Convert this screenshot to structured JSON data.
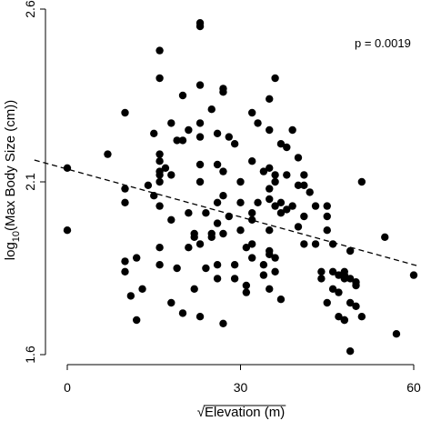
{
  "chart_data": {
    "type": "scatter",
    "title": "",
    "xlabel": "Elevation (m)",
    "xlabel_sqrt_symbol": "√",
    "ylabel_prefix": "log",
    "ylabel_subscript": "10",
    "ylabel_suffix": "(Max Body Size (cm))",
    "xlim": [
      0,
      60
    ],
    "ylim": [
      1.6,
      2.6
    ],
    "xticks": [
      0,
      30,
      60
    ],
    "xtick_labels": [
      "0",
      "30",
      "60"
    ],
    "yticks": [
      1.6,
      2.1,
      2.6
    ],
    "ytick_labels": [
      "1.6",
      "2.1",
      "2.6"
    ],
    "grid": false,
    "annotation": "p = 0.0019",
    "annotation_position": "top-right",
    "trendline": {
      "style": "dashed",
      "x": [
        -5,
        60
      ],
      "y": [
        2.16,
        1.86
      ]
    },
    "colors": {
      "points": "#000000",
      "axis": "#000000"
    },
    "series": [
      {
        "name": "",
        "points": [
          [
            0,
            2.14
          ],
          [
            0,
            1.96
          ],
          [
            7,
            2.18
          ],
          [
            10,
            2.3
          ],
          [
            10,
            2.08
          ],
          [
            10,
            2.04
          ],
          [
            10,
            1.87
          ],
          [
            10,
            1.84
          ],
          [
            11,
            1.77
          ],
          [
            12,
            1.88
          ],
          [
            12,
            1.7
          ],
          [
            13,
            1.79
          ],
          [
            14,
            2.09
          ],
          [
            15,
            2.24
          ],
          [
            16,
            1.86
          ],
          [
            15,
            2.06
          ],
          [
            16,
            2.48
          ],
          [
            16,
            2.4
          ],
          [
            16,
            2.18
          ],
          [
            16,
            2.16
          ],
          [
            16,
            2.13
          ],
          [
            16,
            2.12
          ],
          [
            16,
            2.1
          ],
          [
            16,
            2.03
          ],
          [
            16,
            1.91
          ],
          [
            17,
            2.14
          ],
          [
            18,
            2.27
          ],
          [
            18,
            2.12
          ],
          [
            18,
            1.99
          ],
          [
            18,
            1.75
          ],
          [
            19,
            2.22
          ],
          [
            19,
            1.85
          ],
          [
            20,
            2.35
          ],
          [
            20,
            2.22
          ],
          [
            20,
            1.72
          ],
          [
            21,
            2.25
          ],
          [
            21,
            2.01
          ],
          [
            21,
            1.91
          ],
          [
            22,
            1.79
          ],
          [
            22,
            1.94
          ],
          [
            22,
            1.95
          ],
          [
            23,
            2.56
          ],
          [
            23,
            2.55
          ],
          [
            23,
            2.38
          ],
          [
            23,
            2.27
          ],
          [
            23,
            2.23
          ],
          [
            23,
            2.15
          ],
          [
            23,
            2.1
          ],
          [
            23,
            1.71
          ],
          [
            23,
            1.92
          ],
          [
            24,
            2.01
          ],
          [
            24,
            1.85
          ],
          [
            25,
            2.31
          ],
          [
            25,
            1.95
          ],
          [
            25,
            1.94
          ],
          [
            26,
            2.24
          ],
          [
            26,
            2.15
          ],
          [
            26,
            2.04
          ],
          [
            26,
            1.98
          ],
          [
            26,
            1.86
          ],
          [
            26,
            1.82
          ],
          [
            27,
            2.37
          ],
          [
            27,
            2.36
          ],
          [
            27,
            2.13
          ],
          [
            27,
            2.06
          ],
          [
            27,
            1.95
          ],
          [
            27,
            1.69
          ],
          [
            28,
            2.23
          ],
          [
            28,
            2.0
          ],
          [
            29,
            1.86
          ],
          [
            29,
            1.82
          ],
          [
            29,
            2.21
          ],
          [
            30,
            1.96
          ],
          [
            30,
            2.1
          ],
          [
            30,
            2.04
          ],
          [
            31,
            1.91
          ],
          [
            31,
            1.8
          ],
          [
            31,
            1.78
          ],
          [
            32,
            2.3
          ],
          [
            32,
            2.16
          ],
          [
            32,
            2.01
          ],
          [
            32,
            1.99
          ],
          [
            32,
            1.92
          ],
          [
            32,
            1.88
          ],
          [
            33,
            2.27
          ],
          [
            33,
            2.04
          ],
          [
            34,
            1.86
          ],
          [
            34,
            2.13
          ],
          [
            34,
            1.83
          ],
          [
            35,
            2.34
          ],
          [
            35,
            2.25
          ],
          [
            35,
            2.14
          ],
          [
            35,
            2.05
          ],
          [
            35,
            1.9
          ],
          [
            35,
            1.89
          ],
          [
            35,
            1.79
          ],
          [
            35,
            1.96
          ],
          [
            35,
            2.08
          ],
          [
            36,
            2.4
          ],
          [
            36,
            2.1
          ],
          [
            36,
            2.12
          ],
          [
            36,
            2.03
          ],
          [
            36,
            1.88
          ],
          [
            36,
            1.84
          ],
          [
            37,
            2.21
          ],
          [
            37,
            2.04
          ],
          [
            37,
            2.01
          ],
          [
            37,
            1.76
          ],
          [
            38,
            2.2
          ],
          [
            38,
            2.12
          ],
          [
            38,
            2.02
          ],
          [
            39,
            2.03
          ],
          [
            39,
            2.25
          ],
          [
            40,
            2.17
          ],
          [
            40,
            2.09
          ],
          [
            40,
            1.97
          ],
          [
            41,
            2.12
          ],
          [
            41,
            2.09
          ],
          [
            41,
            2.0
          ],
          [
            41,
            1.92
          ],
          [
            42,
            2.07
          ],
          [
            43,
            2.03
          ],
          [
            43,
            1.92
          ],
          [
            44,
            1.84
          ],
          [
            44,
            1.82
          ],
          [
            45,
            2.03
          ],
          [
            45,
            2.0
          ],
          [
            45,
            1.96
          ],
          [
            45,
            1.75
          ],
          [
            46,
            1.92
          ],
          [
            46,
            1.84
          ],
          [
            46,
            1.79
          ],
          [
            47,
            1.83
          ],
          [
            47,
            1.78
          ],
          [
            47,
            1.71
          ],
          [
            48,
            1.83
          ],
          [
            48,
            1.82
          ],
          [
            48,
            1.7
          ],
          [
            48,
            1.7
          ],
          [
            48,
            1.84
          ],
          [
            49,
            1.9
          ],
          [
            49,
            1.82
          ],
          [
            49,
            1.75
          ],
          [
            49,
            1.61
          ],
          [
            50,
            1.81
          ],
          [
            50,
            1.8
          ],
          [
            50,
            1.74
          ],
          [
            51,
            2.1
          ],
          [
            51,
            1.71
          ],
          [
            55,
            1.94
          ],
          [
            57,
            1.66
          ],
          [
            60,
            1.83
          ]
        ]
      }
    ]
  }
}
